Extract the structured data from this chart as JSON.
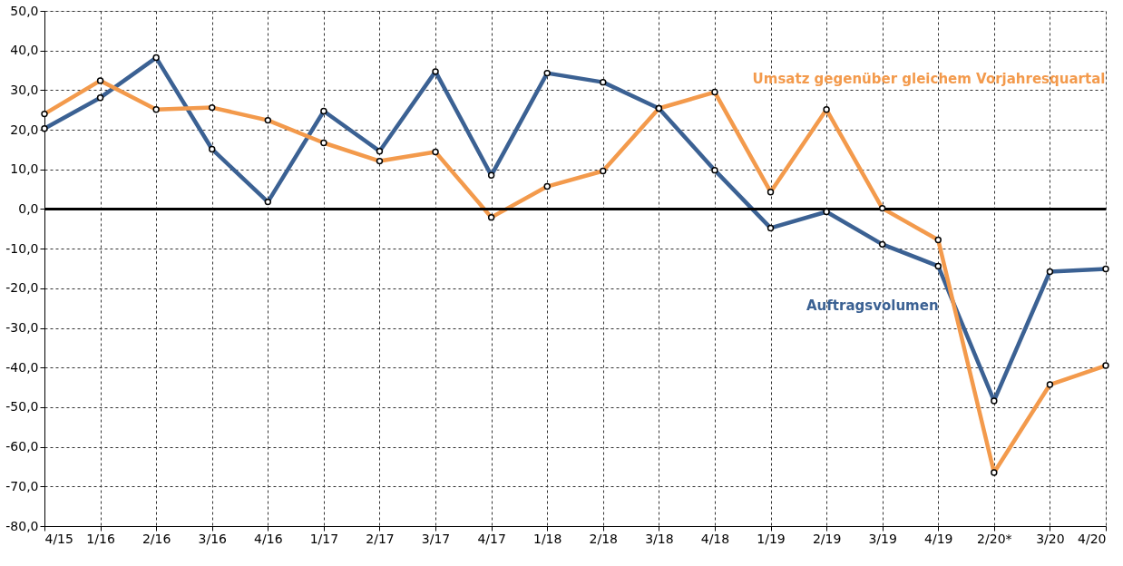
{
  "chart_data": {
    "type": "line",
    "categories": [
      "4/15",
      "1/16",
      "2/16",
      "3/16",
      "4/16",
      "1/17",
      "2/17",
      "3/17",
      "4/17",
      "1/18",
      "2/18",
      "3/18",
      "4/18",
      "1/19",
      "2/19",
      "3/19",
      "4/19",
      "2/20*",
      "3/20",
      "4/20"
    ],
    "series": [
      {
        "name": "Auftragsvolumen",
        "color": "#3b6193",
        "values": [
          20.3,
          28.1,
          38.2,
          15.1,
          1.8,
          24.7,
          14.6,
          34.7,
          8.5,
          34.3,
          32.0,
          25.4,
          9.8,
          -4.8,
          -0.7,
          -8.9,
          -14.4,
          -48.4,
          -15.8,
          -15.1
        ]
      },
      {
        "name": "Umsatz gegenüber gleichem Vorjahresquartal",
        "color": "#f39a4c",
        "values": [
          24.0,
          32.4,
          25.1,
          25.6,
          22.4,
          16.7,
          12.1,
          14.4,
          -2.1,
          5.7,
          9.6,
          25.4,
          29.5,
          4.3,
          25.1,
          0.2,
          -7.8,
          -66.5,
          -44.3,
          -39.5
        ]
      }
    ],
    "ylim": [
      -80,
      50
    ],
    "yticks": [
      {
        "value": -80,
        "label": "-80,0"
      },
      {
        "value": -70,
        "label": "-70,0"
      },
      {
        "value": -60,
        "label": "-60,0"
      },
      {
        "value": -50,
        "label": "-50,0"
      },
      {
        "value": -40,
        "label": "-40,0"
      },
      {
        "value": -30,
        "label": "-30,0"
      },
      {
        "value": -20,
        "label": "-20,0"
      },
      {
        "value": -10,
        "label": "-10,0"
      },
      {
        "value": 0,
        "label": "0,0"
      },
      {
        "value": 10,
        "label": "10,0"
      },
      {
        "value": 20,
        "label": "20,0"
      },
      {
        "value": 30,
        "label": "30,0"
      },
      {
        "value": 40,
        "label": "40,0"
      },
      {
        "value": 50,
        "label": "50,0"
      }
    ],
    "ref_lines": [
      {
        "axis": "y",
        "value": 0,
        "color": "#000000"
      }
    ],
    "grid": true,
    "legend": false,
    "marker": "circle",
    "line_style": "solid"
  }
}
